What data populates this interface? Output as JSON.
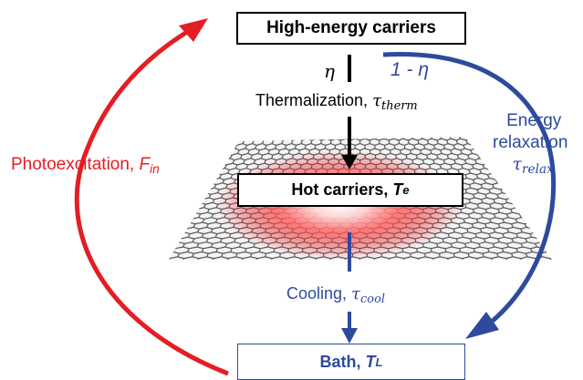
{
  "colors": {
    "red": "#e31e24",
    "blue": "#2e4a9e",
    "black": "#000000",
    "graphene_atom": "#555555"
  },
  "boxes": {
    "top": "High-energy carriers",
    "middle": {
      "text": "Hot carriers, ",
      "symbol": "T",
      "sub": "e"
    },
    "bottom": {
      "text": "Bath, ",
      "symbol": "T",
      "sub": "L"
    }
  },
  "labels": {
    "eta": "η",
    "one_minus_eta": "1 - η",
    "thermalization": {
      "text": "Thermalization, ",
      "symbol": "τ",
      "sub": "therm"
    },
    "photoexcitation": {
      "text": "Photoexcitation, ",
      "symbol": "F",
      "sub": "in"
    },
    "energy_relaxation_line1": "Energy",
    "energy_relaxation_line2": "relaxation",
    "tau_relax": {
      "symbol": "τ",
      "sub": "relax"
    },
    "cooling": {
      "text": "Cooling, ",
      "symbol": "τ",
      "sub": "cool"
    }
  },
  "icons": [
    "graphene-sheet-icon",
    "hot-spot-glow-icon"
  ]
}
